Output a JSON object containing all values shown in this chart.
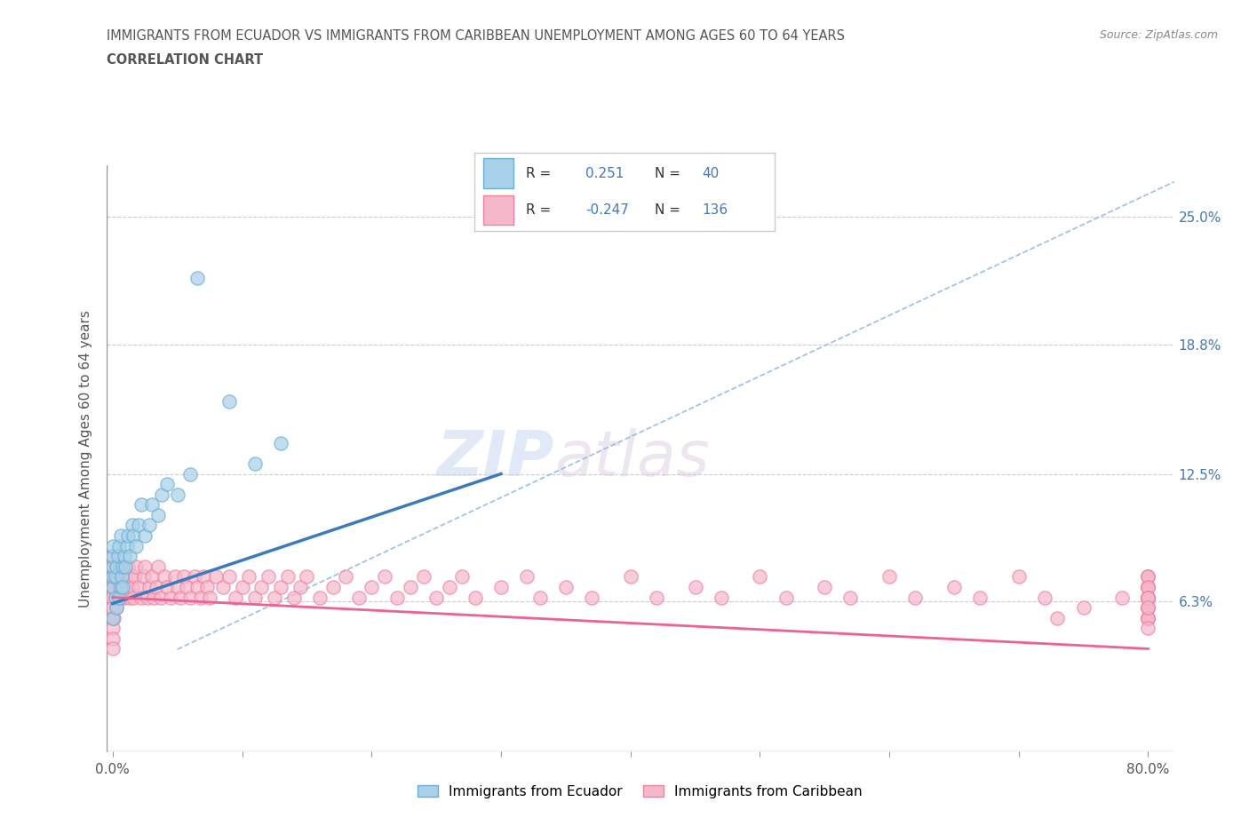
{
  "title_line1": "IMMIGRANTS FROM ECUADOR VS IMMIGRANTS FROM CARIBBEAN UNEMPLOYMENT AMONG AGES 60 TO 64 YEARS",
  "title_line2": "CORRELATION CHART",
  "source_text": "Source: ZipAtlas.com",
  "ylabel": "Unemployment Among Ages 60 to 64 years",
  "watermark_zip": "ZIP",
  "watermark_atlas": "atlas",
  "xlim": [
    -0.005,
    0.82
  ],
  "ylim": [
    -0.01,
    0.275
  ],
  "xticks": [
    0.0,
    0.1,
    0.2,
    0.3,
    0.4,
    0.5,
    0.6,
    0.7,
    0.8
  ],
  "xticklabels": [
    "0.0%",
    "",
    "",
    "",
    "",
    "",
    "",
    "",
    "80.0%"
  ],
  "ytick_positions": [
    0.0,
    0.063,
    0.125,
    0.188,
    0.25
  ],
  "ytick_labels_right": [
    "",
    "6.3%",
    "12.5%",
    "18.8%",
    "25.0%"
  ],
  "R_ecuador": 0.251,
  "N_ecuador": 40,
  "R_caribbean": -0.247,
  "N_caribbean": 136,
  "ecuador_color": "#a8d0e8",
  "caribbean_color": "#f5b8cb",
  "ecuador_edge_color": "#6aaed6",
  "caribbean_edge_color": "#f080a0",
  "ecuador_line_color": "#3a7bbf",
  "caribbean_line_color": "#f06090",
  "dashed_line_color": "#90b8e0",
  "grid_color": "#cccccc",
  "title_color": "#555555",
  "legend_border_color": "#cccccc",
  "ecuador_scatter_x": [
    0.0,
    0.0,
    0.0,
    0.0,
    0.0,
    0.0,
    0.002,
    0.002,
    0.003,
    0.003,
    0.004,
    0.005,
    0.005,
    0.006,
    0.006,
    0.007,
    0.008,
    0.008,
    0.009,
    0.01,
    0.011,
    0.012,
    0.013,
    0.015,
    0.016,
    0.018,
    0.02,
    0.022,
    0.025,
    0.028,
    0.03,
    0.035,
    0.038,
    0.042,
    0.05,
    0.06,
    0.065,
    0.09,
    0.11,
    0.13
  ],
  "ecuador_scatter_y": [
    0.055,
    0.07,
    0.075,
    0.08,
    0.085,
    0.09,
    0.065,
    0.075,
    0.06,
    0.08,
    0.085,
    0.065,
    0.09,
    0.07,
    0.095,
    0.075,
    0.07,
    0.08,
    0.085,
    0.08,
    0.09,
    0.095,
    0.085,
    0.1,
    0.095,
    0.09,
    0.1,
    0.11,
    0.095,
    0.1,
    0.11,
    0.105,
    0.115,
    0.12,
    0.115,
    0.125,
    0.22,
    0.16,
    0.13,
    0.14
  ],
  "caribbean_scatter_x": [
    0.0,
    0.0,
    0.0,
    0.0,
    0.0,
    0.0,
    0.0,
    0.0,
    0.0,
    0.0,
    0.001,
    0.001,
    0.002,
    0.002,
    0.003,
    0.003,
    0.004,
    0.004,
    0.005,
    0.005,
    0.006,
    0.006,
    0.007,
    0.008,
    0.009,
    0.01,
    0.011,
    0.012,
    0.013,
    0.014,
    0.015,
    0.016,
    0.017,
    0.018,
    0.02,
    0.022,
    0.024,
    0.025,
    0.027,
    0.028,
    0.03,
    0.032,
    0.034,
    0.035,
    0.037,
    0.04,
    0.042,
    0.045,
    0.048,
    0.05,
    0.052,
    0.055,
    0.057,
    0.06,
    0.063,
    0.065,
    0.068,
    0.07,
    0.073,
    0.075,
    0.08,
    0.085,
    0.09,
    0.095,
    0.1,
    0.105,
    0.11,
    0.115,
    0.12,
    0.125,
    0.13,
    0.135,
    0.14,
    0.145,
    0.15,
    0.16,
    0.17,
    0.18,
    0.19,
    0.2,
    0.21,
    0.22,
    0.23,
    0.24,
    0.25,
    0.26,
    0.27,
    0.28,
    0.3,
    0.32,
    0.33,
    0.35,
    0.37,
    0.4,
    0.42,
    0.45,
    0.47,
    0.5,
    0.52,
    0.55,
    0.57,
    0.6,
    0.62,
    0.65,
    0.67,
    0.7,
    0.72,
    0.73,
    0.75,
    0.78,
    0.8,
    0.8,
    0.8,
    0.8,
    0.8,
    0.8,
    0.8,
    0.8,
    0.8,
    0.8,
    0.8,
    0.8,
    0.8,
    0.8,
    0.8,
    0.8,
    0.8,
    0.8,
    0.8,
    0.8,
    0.8,
    0.8,
    0.8,
    0.8,
    0.8,
    0.8
  ],
  "caribbean_scatter_y": [
    0.055,
    0.06,
    0.065,
    0.07,
    0.075,
    0.08,
    0.085,
    0.05,
    0.045,
    0.04,
    0.055,
    0.07,
    0.065,
    0.075,
    0.06,
    0.08,
    0.065,
    0.075,
    0.07,
    0.08,
    0.065,
    0.075,
    0.07,
    0.08,
    0.065,
    0.075,
    0.07,
    0.08,
    0.065,
    0.075,
    0.07,
    0.065,
    0.075,
    0.08,
    0.07,
    0.065,
    0.075,
    0.08,
    0.065,
    0.07,
    0.075,
    0.065,
    0.07,
    0.08,
    0.065,
    0.075,
    0.07,
    0.065,
    0.075,
    0.07,
    0.065,
    0.075,
    0.07,
    0.065,
    0.075,
    0.07,
    0.065,
    0.075,
    0.07,
    0.065,
    0.075,
    0.07,
    0.075,
    0.065,
    0.07,
    0.075,
    0.065,
    0.07,
    0.075,
    0.065,
    0.07,
    0.075,
    0.065,
    0.07,
    0.075,
    0.065,
    0.07,
    0.075,
    0.065,
    0.07,
    0.075,
    0.065,
    0.07,
    0.075,
    0.065,
    0.07,
    0.075,
    0.065,
    0.07,
    0.075,
    0.065,
    0.07,
    0.065,
    0.075,
    0.065,
    0.07,
    0.065,
    0.075,
    0.065,
    0.07,
    0.065,
    0.075,
    0.065,
    0.07,
    0.065,
    0.075,
    0.065,
    0.055,
    0.06,
    0.065,
    0.07,
    0.075,
    0.065,
    0.07,
    0.065,
    0.075,
    0.065,
    0.07,
    0.065,
    0.075,
    0.065,
    0.055,
    0.06,
    0.065,
    0.07,
    0.055,
    0.065,
    0.06,
    0.055,
    0.065,
    0.055,
    0.06,
    0.065,
    0.055,
    0.06,
    0.05
  ]
}
